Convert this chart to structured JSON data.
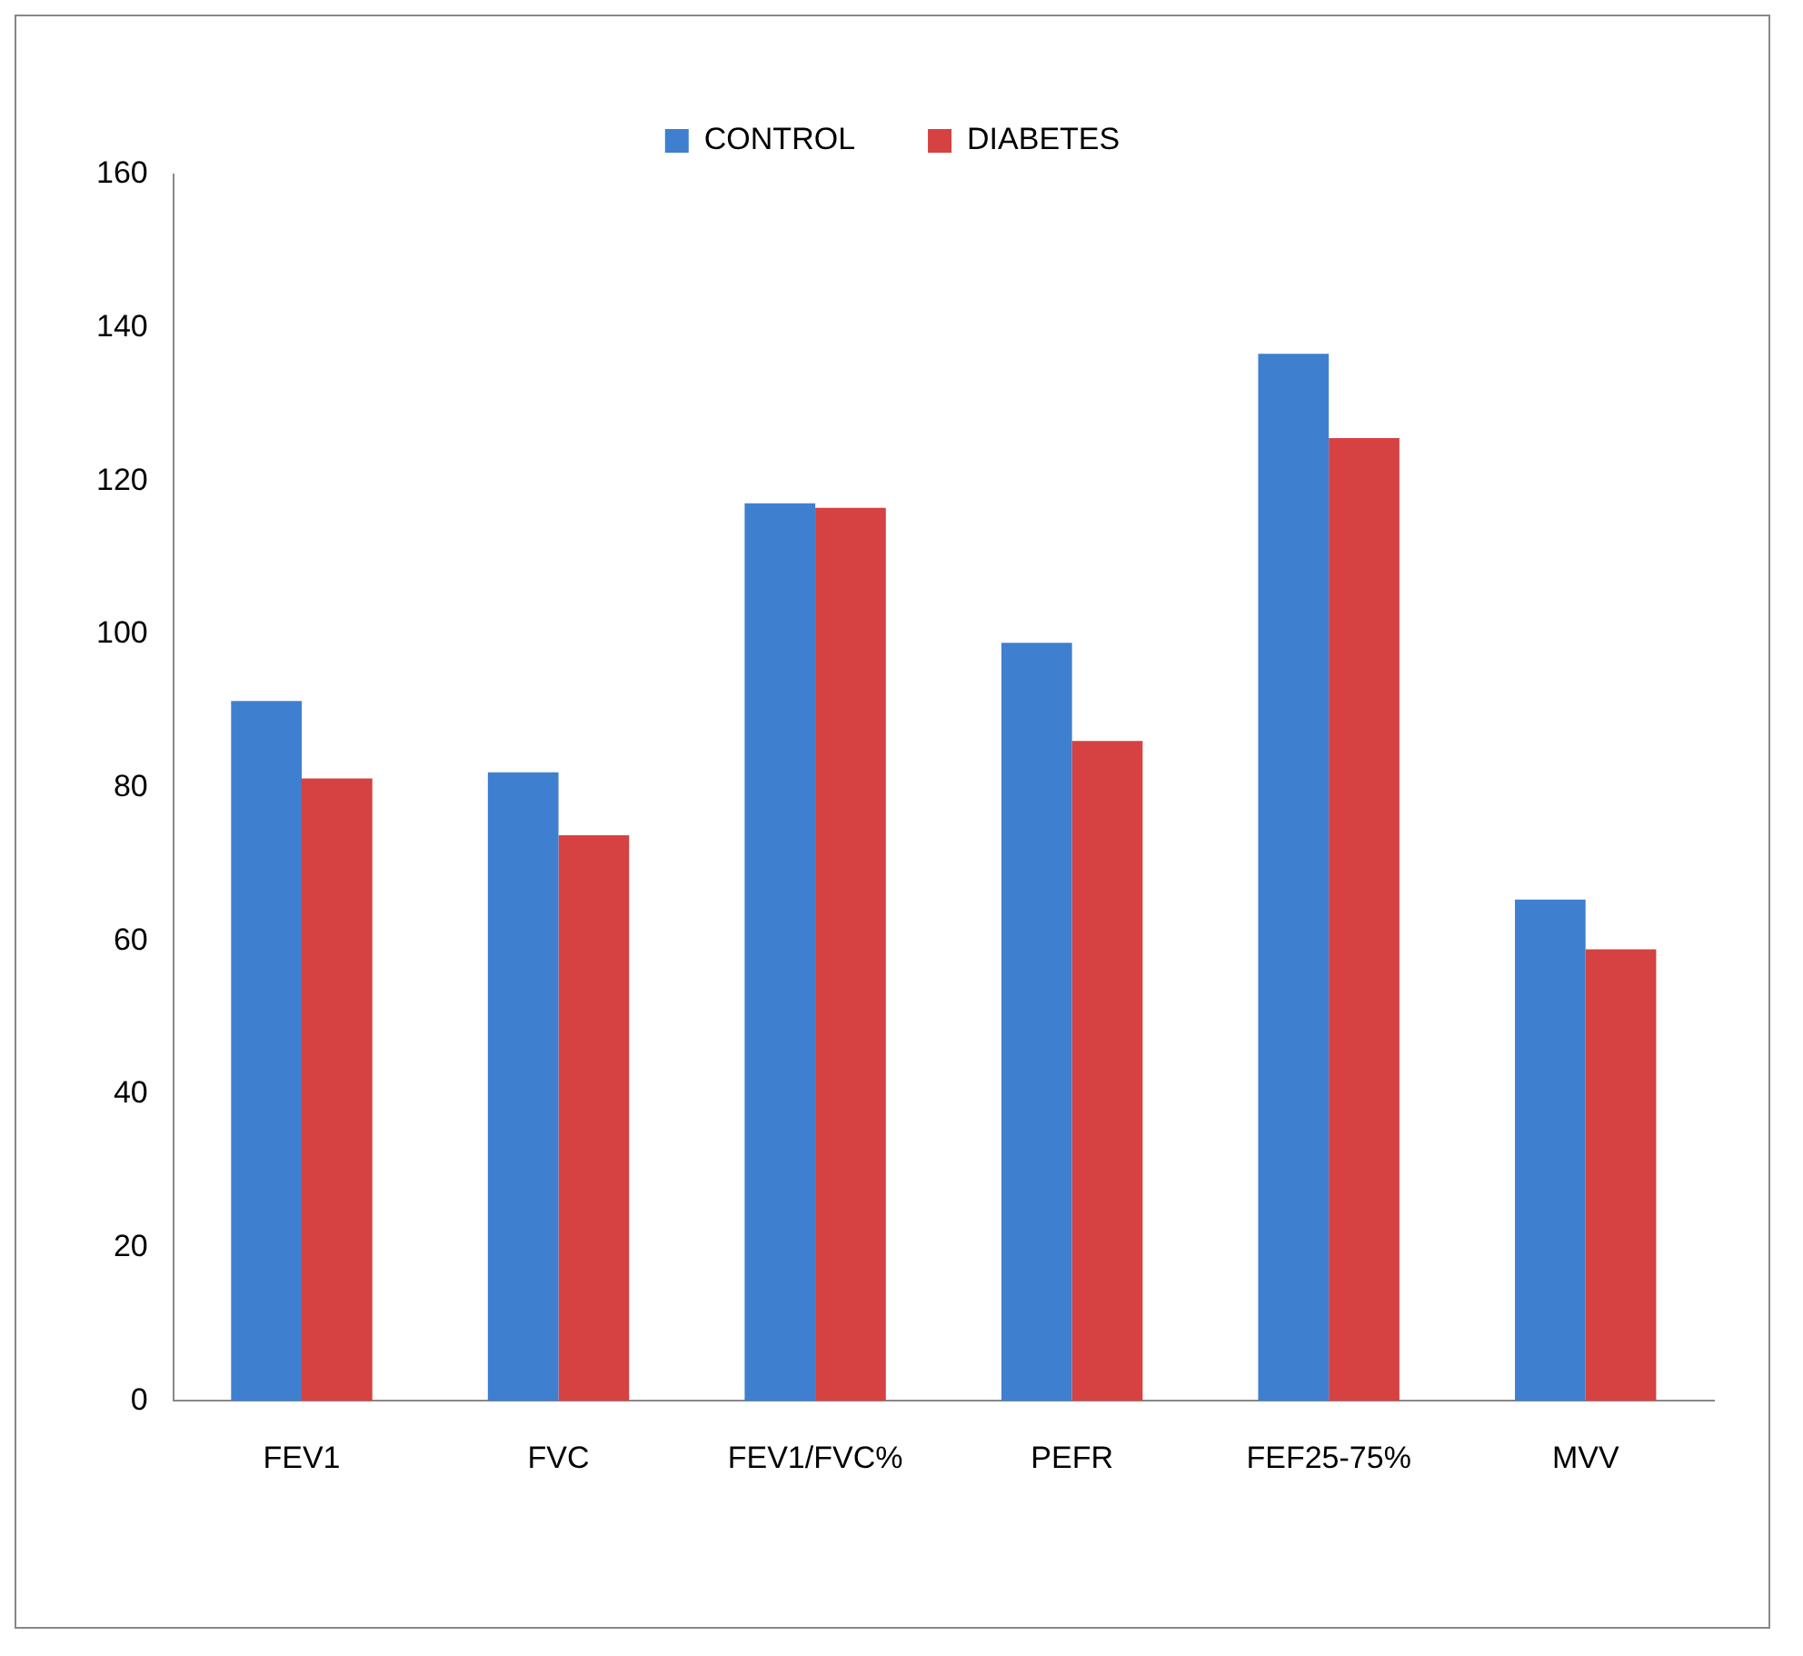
{
  "chart_data": {
    "type": "bar",
    "categories": [
      "FEV1",
      "FVC",
      "FEV1/FVC%",
      "PEFR",
      "FEF25-75%",
      "MVV"
    ],
    "series": [
      {
        "name": "CONTROL",
        "color": "#3f7fcf",
        "values": [
          91.3,
          82.0,
          117.1,
          98.9,
          136.6,
          65.4
        ]
      },
      {
        "name": "DIABETES",
        "color": "#d64141",
        "values": [
          81.2,
          73.8,
          116.5,
          86.1,
          125.6,
          58.9
        ]
      }
    ],
    "ylim": [
      0,
      160
    ],
    "yticks": [
      0,
      20,
      40,
      60,
      80,
      100,
      120,
      140,
      160
    ],
    "grid": false,
    "legend": "top"
  }
}
